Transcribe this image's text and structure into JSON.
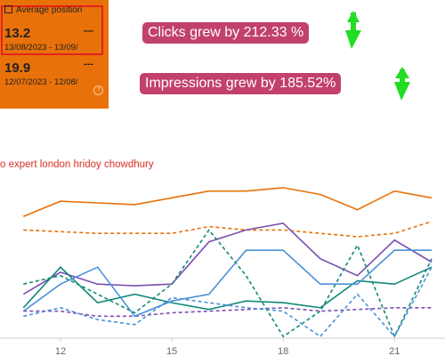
{
  "card": {
    "checkbox_label": "Average position",
    "primary_value": "13.2",
    "primary_dates": "13/08/2023 - 13/09/",
    "primary_sample": "—",
    "secondary_value": "19.9",
    "secondary_dates": "12/07/2023 - 12/08/",
    "secondary_sample": "---",
    "help_icon": "?"
  },
  "annotations": {
    "clicks": "Clicks grew by 212.33 %",
    "impressions": "Impressions grew by 185.52%"
  },
  "chart_data": {
    "type": "line",
    "title": "o expert london hridoy chowdhury",
    "x": [
      11,
      12,
      13,
      14,
      15,
      16,
      17,
      18,
      19,
      20,
      21,
      22
    ],
    "xlim": [
      10.37,
      22.36
    ],
    "xticks": [
      12,
      15,
      18,
      21
    ],
    "ylim": [
      0,
      100
    ],
    "series": [
      {
        "color": "#e8710a",
        "style": "solid",
        "values": [
          72,
          81,
          80,
          79,
          83,
          87,
          87,
          89,
          85,
          76,
          87,
          83
        ]
      },
      {
        "color": "#e8710a",
        "style": "dashed",
        "values": [
          64,
          63,
          62,
          62,
          62,
          66,
          64,
          64,
          62,
          60,
          62,
          69
        ]
      },
      {
        "color": "#7b4fb0",
        "style": "solid",
        "values": [
          26,
          39,
          32,
          31,
          32,
          57,
          64,
          68,
          47,
          37,
          58,
          45
        ]
      },
      {
        "color": "#7b4fb0",
        "style": "dashed",
        "values": [
          16,
          16,
          13,
          13,
          15,
          16,
          17,
          18,
          16,
          17,
          18,
          18
        ]
      },
      {
        "color": "#12897a",
        "style": "solid",
        "values": [
          18,
          42,
          21,
          26,
          21,
          17,
          22,
          21,
          18,
          34,
          32,
          42
        ]
      },
      {
        "color": "#12897a",
        "style": "dashed",
        "values": [
          32,
          37,
          26,
          15,
          32,
          64,
          37,
          1,
          16,
          55,
          1,
          47
        ]
      },
      {
        "color": "#4a90d9",
        "style": "solid",
        "values": [
          16,
          32,
          42,
          13,
          22,
          26,
          52,
          52,
          32,
          32,
          52,
          52
        ]
      },
      {
        "color": "#4a90d9",
        "style": "dashed",
        "values": [
          13,
          18,
          11,
          8,
          24,
          21,
          18,
          16,
          1,
          26,
          1,
          42
        ]
      }
    ]
  }
}
